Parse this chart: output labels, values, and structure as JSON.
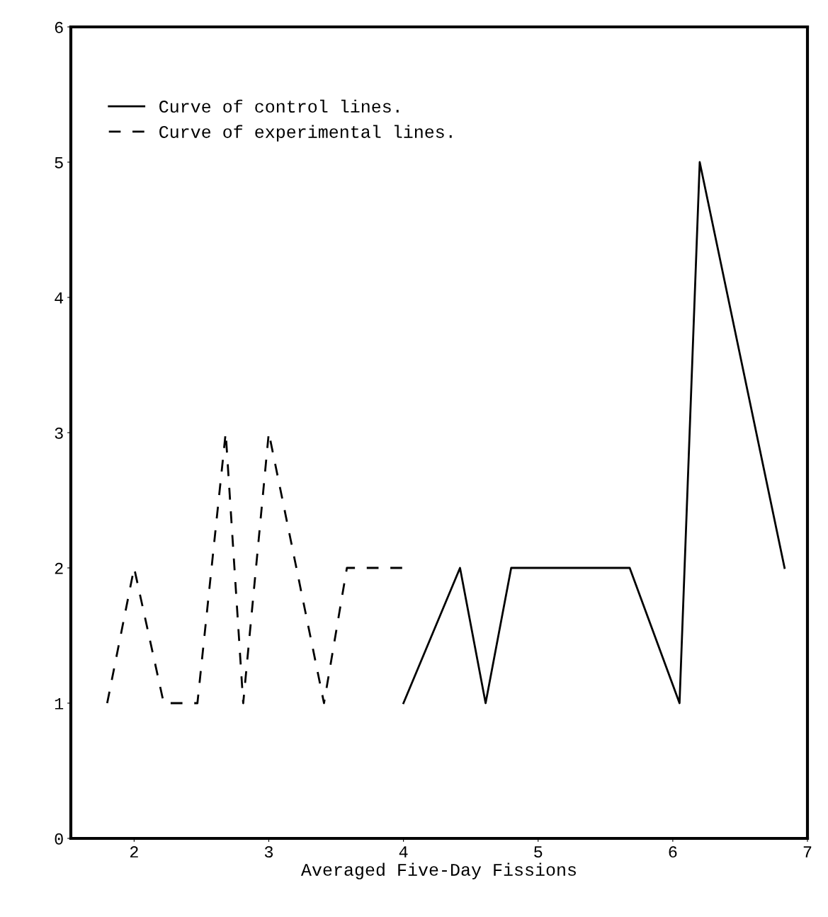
{
  "chart_data": {
    "type": "line",
    "xlabel": "Averaged Five-Day Fissions",
    "xlim": [
      1.53,
      7.0
    ],
    "xticks": [
      2,
      3,
      4,
      5,
      6,
      7
    ],
    "ylim": [
      0,
      6
    ],
    "yticks": [
      0,
      1,
      2,
      3,
      4,
      5,
      6
    ],
    "grid": false,
    "legend": "top left",
    "marker": "none",
    "series": [
      {
        "name": "Curve of control lines.",
        "color": "#000000",
        "line_style": "solid",
        "x": [
          4.0,
          4.42,
          4.61,
          4.8,
          5.68,
          6.05,
          6.2,
          6.83
        ],
        "values": [
          1,
          2,
          1,
          2,
          2,
          1,
          5,
          2
        ]
      },
      {
        "name": "Curve of experimental lines.",
        "color": "#000000",
        "line_style": "dashed",
        "x": [
          1.8,
          2.0,
          2.22,
          2.47,
          2.68,
          2.81,
          3.0,
          3.41,
          3.58,
          4.0
        ],
        "values": [
          1,
          2,
          1,
          1,
          3,
          1,
          3,
          1,
          2,
          2
        ]
      }
    ]
  }
}
